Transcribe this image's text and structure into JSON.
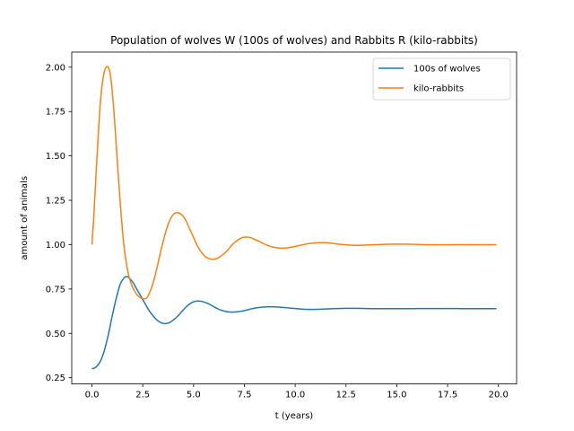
{
  "chart_data": {
    "type": "line",
    "title": "Population of wolves W (100s of wolves) and Rabbits R (kilo-rabbits)",
    "xlabel": "t (years)",
    "ylabel": "amount of animals",
    "xlim": [
      -0.995,
      20.895
    ],
    "ylim": [
      0.215,
      2.085
    ],
    "xticks": [
      0.0,
      2.5,
      5.0,
      7.5,
      10.0,
      12.5,
      15.0,
      17.5,
      20.0
    ],
    "xtick_labels": [
      "0.0",
      "2.5",
      "5.0",
      "7.5",
      "10.0",
      "12.5",
      "15.0",
      "17.5",
      "20.0"
    ],
    "yticks": [
      0.25,
      0.5,
      0.75,
      1.0,
      1.25,
      1.5,
      1.75,
      2.0
    ],
    "ytick_labels": [
      "0.25",
      "0.50",
      "0.75",
      "1.00",
      "1.25",
      "1.50",
      "1.75",
      "2.00"
    ],
    "grid": false,
    "legend_position": "top-right",
    "series": [
      {
        "name": "100s of wolves",
        "color": "#1f77b4",
        "x": [
          0.0,
          0.2,
          0.4,
          0.6,
          0.8,
          1.0,
          1.2,
          1.4,
          1.6,
          1.7,
          1.8,
          2.0,
          2.2,
          2.4,
          2.6,
          2.8,
          3.0,
          3.2,
          3.4,
          3.6,
          3.8,
          4.0,
          4.2,
          4.4,
          4.6,
          4.8,
          5.0,
          5.2,
          5.4,
          5.6,
          5.8,
          6.0,
          6.2,
          6.4,
          6.6,
          6.8,
          7.0,
          7.2,
          7.4,
          7.6,
          7.8,
          8.0,
          8.4,
          8.8,
          9.2,
          9.6,
          10.0,
          10.4,
          10.8,
          11.2,
          11.6,
          12.0,
          12.5,
          13.0,
          13.5,
          14.0,
          14.5,
          15.0,
          15.5,
          16.0,
          16.5,
          17.0,
          17.5,
          18.0,
          18.5,
          19.0,
          19.5,
          19.9
        ],
        "y": [
          0.3,
          0.31,
          0.34,
          0.4,
          0.49,
          0.6,
          0.7,
          0.78,
          0.815,
          0.82,
          0.815,
          0.79,
          0.75,
          0.71,
          0.67,
          0.63,
          0.6,
          0.575,
          0.56,
          0.555,
          0.56,
          0.575,
          0.595,
          0.62,
          0.645,
          0.665,
          0.678,
          0.682,
          0.68,
          0.673,
          0.663,
          0.65,
          0.638,
          0.629,
          0.623,
          0.62,
          0.62,
          0.622,
          0.626,
          0.631,
          0.637,
          0.642,
          0.648,
          0.65,
          0.648,
          0.644,
          0.64,
          0.636,
          0.635,
          0.636,
          0.638,
          0.64,
          0.641,
          0.641,
          0.64,
          0.639,
          0.639,
          0.639,
          0.639,
          0.64,
          0.64,
          0.64,
          0.64,
          0.64,
          0.639,
          0.639,
          0.639,
          0.639
        ]
      },
      {
        "name": "kilo-rabbits",
        "color": "#ff7f0e",
        "x": [
          0.0,
          0.1,
          0.2,
          0.3,
          0.4,
          0.5,
          0.6,
          0.7,
          0.8,
          0.9,
          1.0,
          1.1,
          1.2,
          1.3,
          1.4,
          1.5,
          1.6,
          1.7,
          1.8,
          1.9,
          2.0,
          2.2,
          2.4,
          2.6,
          2.7,
          2.8,
          3.0,
          3.2,
          3.4,
          3.6,
          3.8,
          4.0,
          4.2,
          4.4,
          4.6,
          4.8,
          5.0,
          5.2,
          5.4,
          5.6,
          5.8,
          6.0,
          6.2,
          6.4,
          6.6,
          6.8,
          7.0,
          7.2,
          7.4,
          7.6,
          7.8,
          8.0,
          8.2,
          8.4,
          8.6,
          8.8,
          9.0,
          9.4,
          9.8,
          10.2,
          10.6,
          11.0,
          11.4,
          11.8,
          12.2,
          12.6,
          13.0,
          13.5,
          14.0,
          14.5,
          15.0,
          15.5,
          16.0,
          16.5,
          17.0,
          17.5,
          18.0,
          18.5,
          19.0,
          19.5,
          19.9
        ],
        "y": [
          1.0,
          1.18,
          1.4,
          1.6,
          1.78,
          1.9,
          1.97,
          2.0,
          2.0,
          1.96,
          1.86,
          1.72,
          1.55,
          1.38,
          1.22,
          1.08,
          0.97,
          0.89,
          0.83,
          0.79,
          0.76,
          0.72,
          0.7,
          0.695,
          0.7,
          0.72,
          0.78,
          0.87,
          0.97,
          1.06,
          1.13,
          1.17,
          1.18,
          1.17,
          1.14,
          1.09,
          1.04,
          0.99,
          0.955,
          0.93,
          0.92,
          0.918,
          0.925,
          0.94,
          0.96,
          0.985,
          1.01,
          1.028,
          1.04,
          1.043,
          1.04,
          1.03,
          1.02,
          1.008,
          0.998,
          0.99,
          0.984,
          0.98,
          0.985,
          0.995,
          1.005,
          1.01,
          1.012,
          1.008,
          1.002,
          0.998,
          0.996,
          0.998,
          1.0,
          1.002,
          1.003,
          1.003,
          1.001,
          1.0,
          0.999,
          0.999,
          1.0,
          1.0,
          1.0,
          1.0,
          1.0
        ]
      }
    ]
  }
}
